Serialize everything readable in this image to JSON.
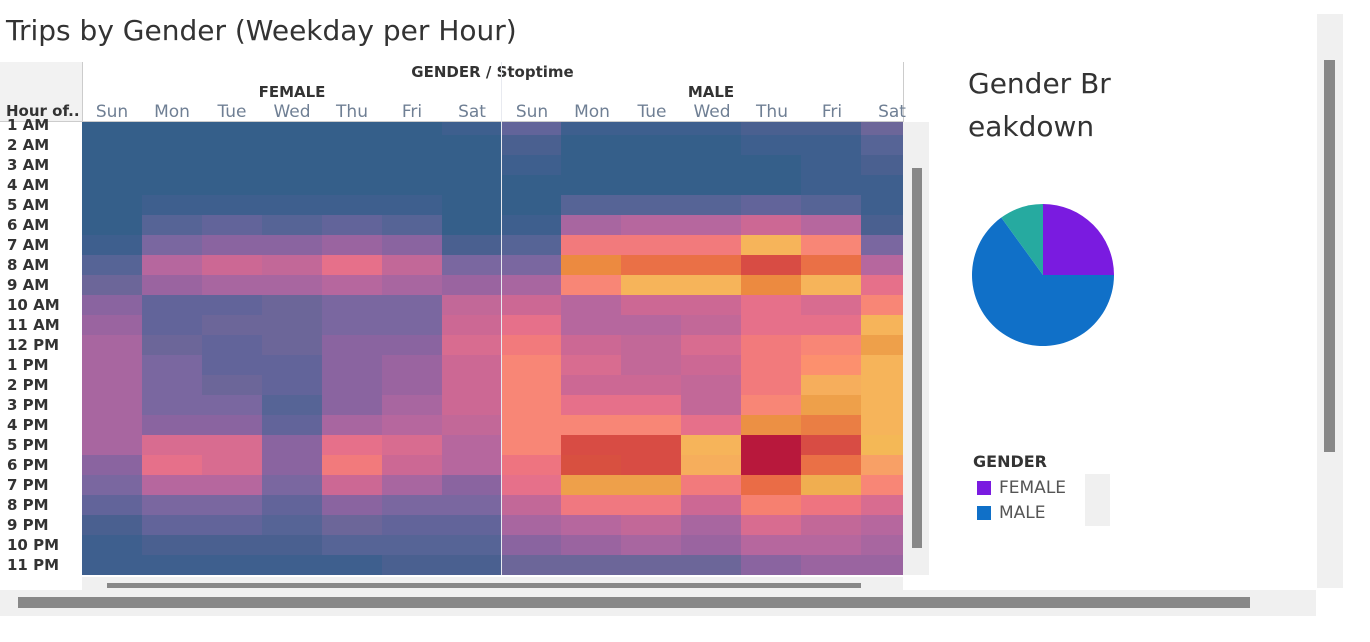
{
  "title": "Trips by Gender (Weekday per Hour)",
  "chart_data": [
    {
      "type": "heatmap",
      "title": "Trips by Gender (Weekday per Hour)",
      "column_header": "GENDER / Stoptime",
      "row_header": "Hour of..",
      "groups": [
        "FEMALE",
        "MALE"
      ],
      "days": [
        "Sun",
        "Mon",
        "Tue",
        "Wed",
        "Thu",
        "Fri",
        "Sat"
      ],
      "hours": [
        "1 AM",
        "2 AM",
        "3 AM",
        "4 AM",
        "5 AM",
        "6 AM",
        "7 AM",
        "8 AM",
        "9 AM",
        "10 AM",
        "11 AM",
        "12 PM",
        "1 PM",
        "2 PM",
        "3 PM",
        "4 PM",
        "5 PM",
        "6 PM",
        "7 PM",
        "8 PM",
        "9 PM",
        "10 PM",
        "11 PM"
      ],
      "palette": {
        "B0": "#355f8a",
        "B1": "#3e5f8e",
        "B2": "#4a6090",
        "B3": "#566496",
        "P1": "#62649a",
        "P2": "#6c6699",
        "P3": "#7a67a0",
        "P4": "#8a64a0",
        "P5": "#9a64a0",
        "M1": "#a866a0",
        "M2": "#b6679e",
        "M3": "#c26898",
        "K1": "#cc6894",
        "K2": "#d86c90",
        "K3": "#e6708a",
        "S1": "#f27a7c",
        "S2": "#f88676",
        "O1": "#f6b45a",
        "O2": "#ec8a40",
        "O3": "#ea7046",
        "R1": "#d84c44",
        "R2": "#b8183c",
        "Y2": "#eea04a",
        "Y3": "#f6ae5c",
        "Y4": "#f4b856",
        "Y5": "#f8a066",
        "Y6": "#f0ae50",
        "F1": "#fc906e",
        "F2": "#ee7480",
        "F3": "#f07880",
        "F4": "#f68070",
        "R3": "#d85040",
        "O4": "#ea6c46",
        "O5": "#ea7e44",
        "O6": "#ec9044"
      },
      "cells": {
        "FEMALE": [
          [
            "B0",
            "B0",
            "B0",
            "B0",
            "B0",
            "B0",
            "B1"
          ],
          [
            "B0",
            "B0",
            "B0",
            "B0",
            "B0",
            "B0",
            "B0"
          ],
          [
            "B0",
            "B0",
            "B0",
            "B0",
            "B0",
            "B0",
            "B0"
          ],
          [
            "B0",
            "B0",
            "B0",
            "B0",
            "B0",
            "B0",
            "B0"
          ],
          [
            "B0",
            "B1",
            "B1",
            "B1",
            "B1",
            "B1",
            "B0"
          ],
          [
            "B0",
            "B3",
            "P1",
            "B3",
            "P1",
            "B3",
            "B0"
          ],
          [
            "B1",
            "P3",
            "P4",
            "P4",
            "P5",
            "P4",
            "B2"
          ],
          [
            "B3",
            "M2",
            "K1",
            "M3",
            "K3",
            "M3",
            "P3"
          ],
          [
            "P2",
            "P5",
            "M1",
            "M1",
            "M2",
            "M1",
            "P5"
          ],
          [
            "P4",
            "P1",
            "P1",
            "P2",
            "P3",
            "P3",
            "M3"
          ],
          [
            "P5",
            "P1",
            "P2",
            "P2",
            "P3",
            "P3",
            "K1"
          ],
          [
            "M1",
            "P2",
            "P1",
            "P2",
            "P4",
            "P4",
            "K2"
          ],
          [
            "M1",
            "P3",
            "P1",
            "P1",
            "P4",
            "P5",
            "K1"
          ],
          [
            "M1",
            "P3",
            "P2",
            "P1",
            "P4",
            "P5",
            "K1"
          ],
          [
            "M1",
            "P3",
            "P3",
            "B3",
            "P4",
            "M1",
            "K1"
          ],
          [
            "M1",
            "P4",
            "P4",
            "P1",
            "M1",
            "M2",
            "M3"
          ],
          [
            "M1",
            "K2",
            "K2",
            "P4",
            "K3",
            "K2",
            "M2"
          ],
          [
            "P4",
            "K3",
            "K2",
            "P4",
            "S1",
            "K1",
            "M2"
          ],
          [
            "P3",
            "M2",
            "M2",
            "P3",
            "K1",
            "M1",
            "P4"
          ],
          [
            "P1",
            "P3",
            "P3",
            "P1",
            "P4",
            "P3",
            "P3"
          ],
          [
            "B2",
            "P1",
            "P1",
            "B3",
            "P2",
            "P1",
            "P1"
          ],
          [
            "B1",
            "B2",
            "B2",
            "B2",
            "B3",
            "B3",
            "B3"
          ],
          [
            "B1",
            "B1",
            "B1",
            "B1",
            "B1",
            "B2",
            "B2"
          ]
        ],
        "MALE": [
          [
            "P1",
            "B1",
            "B1",
            "B1",
            "B2",
            "B2",
            "P2"
          ],
          [
            "B2",
            "B0",
            "B0",
            "B0",
            "B1",
            "B1",
            "B3"
          ],
          [
            "B1",
            "B0",
            "B0",
            "B0",
            "B0",
            "B1",
            "B2"
          ],
          [
            "B0",
            "B0",
            "B0",
            "B0",
            "B0",
            "B1",
            "B1"
          ],
          [
            "B0",
            "B3",
            "B3",
            "B3",
            "P1",
            "B3",
            "B1"
          ],
          [
            "B1",
            "M1",
            "M2",
            "M2",
            "K1",
            "M2",
            "B2"
          ],
          [
            "B3",
            "S1",
            "S1",
            "S1",
            "O1",
            "S2",
            "P3"
          ],
          [
            "P3",
            "O2",
            "O3",
            "O3",
            "R1",
            "O3",
            "M2"
          ],
          [
            "M1",
            "S2",
            "O1",
            "O1",
            "O2",
            "O1",
            "K3"
          ],
          [
            "K1",
            "M2",
            "K1",
            "K1",
            "K3",
            "K2",
            "S2"
          ],
          [
            "K3",
            "M2",
            "M2",
            "M3",
            "K3",
            "K3",
            "O1"
          ],
          [
            "S1",
            "K1",
            "M3",
            "K2",
            "S1",
            "S2",
            "Y2"
          ],
          [
            "S2",
            "K2",
            "M3",
            "K1",
            "S1",
            "F1",
            "O1"
          ],
          [
            "S2",
            "K1",
            "K1",
            "M3",
            "S1",
            "Y3",
            "O1"
          ],
          [
            "S2",
            "K3",
            "K3",
            "M3",
            "S2",
            "Y2",
            "O1"
          ],
          [
            "S2",
            "S2",
            "S2",
            "K3",
            "O6",
            "O5",
            "O1"
          ],
          [
            "S2",
            "R1",
            "R1",
            "O1",
            "R2",
            "R1",
            "Y4"
          ],
          [
            "F2",
            "R3",
            "R1",
            "Y3",
            "R2",
            "O3",
            "Y5"
          ],
          [
            "K3",
            "Y2",
            "Y2",
            "S1",
            "O4",
            "Y6",
            "S2"
          ],
          [
            "M3",
            "F3",
            "F3",
            "K1",
            "F4",
            "F2",
            "K2"
          ],
          [
            "M1",
            "M2",
            "M3",
            "M1",
            "K2",
            "M3",
            "M2"
          ],
          [
            "P4",
            "P5",
            "M1",
            "P5",
            "M2",
            "M2",
            "M1"
          ],
          [
            "P2",
            "P2",
            "P2",
            "P2",
            "P4",
            "P5",
            "P5"
          ]
        ]
      }
    },
    {
      "type": "pie",
      "title": "Gender Breakdown",
      "slices": [
        {
          "label": "FEMALE",
          "value": 25,
          "color": "#7a1be0"
        },
        {
          "label": "MALE",
          "value": 65,
          "color": "#1070c8"
        },
        {
          "label": "",
          "value": 10,
          "color": "#26aaa0"
        }
      ],
      "legend_title": "GENDER",
      "legend": [
        {
          "label": "FEMALE",
          "color": "#7a1be0"
        },
        {
          "label": "MALE",
          "color": "#1070c8"
        }
      ],
      "legend_placement": "bottom"
    }
  ]
}
